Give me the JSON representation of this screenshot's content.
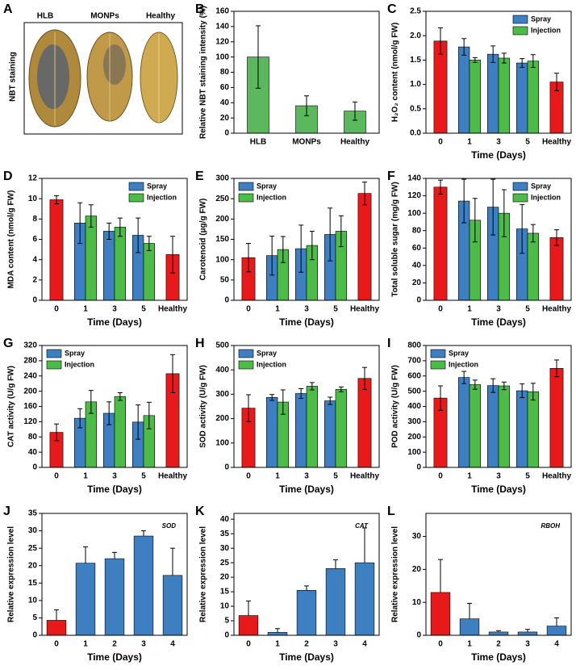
{
  "image_panel": {
    "panel_label": "A",
    "ylabel": "NBT staining",
    "captions": [
      "HLB",
      "MONPs",
      "Healthy"
    ]
  },
  "chart_data": [
    {
      "type": "bar",
      "panel_label": "B",
      "ylabel": "Relative NBT staining intensity (%)",
      "categories": [
        "HLB",
        "MONPs",
        "Healthy"
      ],
      "values": [
        100,
        36,
        29
      ],
      "errors": [
        41,
        13,
        12
      ],
      "color": "#5cb85c",
      "error_direction": "both",
      "ylim": [
        0,
        160
      ],
      "yticks": [
        0,
        20,
        40,
        60,
        80,
        100,
        120,
        140,
        160
      ]
    },
    {
      "type": "grouped-bar",
      "panel_label": "C",
      "ylabel": "H₂O₂ content (nmol/g FW)",
      "xlabel": "Time (Days)",
      "categories": [
        "0",
        "1",
        "3",
        "5",
        "Healthy"
      ],
      "control": {
        "color": "#e8191b",
        "values": [
          1.89,
          null,
          null,
          null,
          1.05
        ],
        "errors": [
          0.27,
          null,
          null,
          null,
          0.18
        ]
      },
      "series": [
        {
          "name": "Spray",
          "color": "#3d7fc1",
          "values": [
            null,
            1.77,
            1.62,
            1.44,
            null
          ],
          "errors": [
            null,
            0.17,
            0.17,
            0.09,
            null
          ]
        },
        {
          "name": "Injection",
          "color": "#4cbb47",
          "values": [
            null,
            1.5,
            1.54,
            1.48,
            null
          ],
          "errors": [
            null,
            0.05,
            0.1,
            0.13,
            null
          ]
        }
      ],
      "legend": "upper right",
      "error_direction": "both",
      "ylim": [
        0,
        2.5
      ],
      "yticks": [
        {
          "value": 0,
          "label": "0.0"
        },
        {
          "value": 0.5,
          "label": "0.5"
        },
        {
          "value": 1,
          "label": "1.0"
        },
        {
          "value": 1.5,
          "label": "1.5"
        },
        {
          "value": 2,
          "label": "2.0"
        },
        {
          "value": 2.5,
          "label": "2.5"
        }
      ]
    },
    {
      "type": "grouped-bar",
      "panel_label": "D",
      "ylabel": "MDA content (nmol/g FW)",
      "xlabel": "Time (Days)",
      "categories": [
        "0",
        "1",
        "3",
        "5",
        "Healthy"
      ],
      "control": {
        "color": "#e8191b",
        "values": [
          9.9,
          null,
          null,
          null,
          4.5
        ],
        "errors": [
          0.4,
          null,
          null,
          null,
          1.8
        ]
      },
      "series": [
        {
          "name": "Spray",
          "color": "#3d7fc1",
          "values": [
            null,
            7.6,
            6.8,
            6.4,
            null
          ],
          "errors": [
            null,
            2,
            0.8,
            1.7,
            null
          ]
        },
        {
          "name": "Injection",
          "color": "#4cbb47",
          "values": [
            null,
            8.3,
            7.2,
            5.6,
            null
          ],
          "errors": [
            null,
            1.1,
            0.9,
            0.7,
            null
          ]
        }
      ],
      "legend": "upper right",
      "error_direction": "both",
      "ylim": [
        0,
        12
      ],
      "yticks": [
        0,
        2,
        4,
        6,
        8,
        10,
        12
      ]
    },
    {
      "type": "grouped-bar",
      "panel_label": "E",
      "ylabel": "Carotenoid (μg/g FW)",
      "xlabel": "Time (Days)",
      "categories": [
        "0",
        "1",
        "3",
        "5",
        "Healthy"
      ],
      "control": {
        "color": "#e8191b",
        "values": [
          105,
          null,
          null,
          null,
          263
        ],
        "errors": [
          35,
          null,
          null,
          null,
          28
        ]
      },
      "series": [
        {
          "name": "Spray",
          "color": "#3d7fc1",
          "values": [
            null,
            110,
            127,
            162,
            null
          ],
          "errors": [
            null,
            48,
            58,
            65,
            null
          ]
        },
        {
          "name": "Injection",
          "color": "#4cbb47",
          "values": [
            null,
            125,
            135,
            170,
            null
          ],
          "errors": [
            null,
            32,
            35,
            38,
            null
          ]
        }
      ],
      "legend": "upper left",
      "error_direction": "both",
      "ylim": [
        0,
        300
      ],
      "yticks": [
        0,
        50,
        100,
        150,
        200,
        250,
        300
      ]
    },
    {
      "type": "grouped-bar",
      "panel_label": "F",
      "ylabel": "Total soluble sugar (mg/g FW)",
      "xlabel": "Time (Days)",
      "categories": [
        "0",
        "1",
        "3",
        "5",
        "Healthy"
      ],
      "control": {
        "color": "#e8191b",
        "values": [
          130,
          null,
          null,
          null,
          72
        ],
        "errors": [
          8,
          null,
          null,
          null,
          9
        ]
      },
      "series": [
        {
          "name": "Spray",
          "color": "#3d7fc1",
          "values": [
            null,
            114,
            107,
            82,
            null
          ],
          "errors": [
            null,
            25,
            32,
            28,
            null
          ]
        },
        {
          "name": "Injection",
          "color": "#4cbb47",
          "values": [
            null,
            92,
            100,
            77,
            null
          ],
          "errors": [
            null,
            25,
            27,
            10,
            null
          ]
        }
      ],
      "legend": "upper right",
      "error_direction": "both",
      "ylim": [
        0,
        140
      ],
      "yticks": [
        0,
        20,
        40,
        60,
        80,
        100,
        120,
        140
      ]
    },
    {
      "type": "grouped-bar",
      "panel_label": "G",
      "ylabel": "CAT activity (U/g FW)",
      "xlabel": "Time (Days)",
      "categories": [
        "0",
        "1",
        "3",
        "5",
        "Healthy"
      ],
      "control": {
        "color": "#e8191b",
        "values": [
          92,
          null,
          null,
          null,
          246
        ],
        "errors": [
          22,
          null,
          null,
          null,
          50
        ]
      },
      "series": [
        {
          "name": "Spray",
          "color": "#3d7fc1",
          "values": [
            null,
            129,
            142,
            119,
            null
          ],
          "errors": [
            null,
            25,
            30,
            45,
            null
          ]
        },
        {
          "name": "Injection",
          "color": "#4cbb47",
          "values": [
            null,
            172,
            186,
            136,
            null
          ],
          "errors": [
            null,
            30,
            10,
            35,
            null
          ]
        }
      ],
      "legend": "upper left",
      "error_direction": "both",
      "ylim": [
        0,
        320
      ],
      "yticks": [
        0,
        40,
        80,
        120,
        160,
        200,
        240,
        280,
        320
      ]
    },
    {
      "type": "grouped-bar",
      "panel_label": "H",
      "ylabel": "SOD activity (U/g FW)",
      "xlabel": "Time (Days)",
      "categories": [
        "0",
        "1",
        "3",
        "5",
        "Healthy"
      ],
      "control": {
        "color": "#e8191b",
        "values": [
          243,
          null,
          null,
          null,
          365
        ],
        "errors": [
          55,
          null,
          null,
          null,
          45
        ]
      },
      "series": [
        {
          "name": "Spray",
          "color": "#3d7fc1",
          "values": [
            null,
            287,
            303,
            273,
            null
          ],
          "errors": [
            null,
            12,
            20,
            15,
            null
          ]
        },
        {
          "name": "Injection",
          "color": "#4cbb47",
          "values": [
            null,
            268,
            333,
            320,
            null
          ],
          "errors": [
            null,
            50,
            15,
            10,
            null
          ]
        }
      ],
      "legend": "upper left",
      "error_direction": "both",
      "ylim": [
        0,
        500
      ],
      "yticks": [
        0,
        100,
        200,
        300,
        400,
        500
      ]
    },
    {
      "type": "grouped-bar",
      "panel_label": "I",
      "ylabel": "POD activity (U/g FW)",
      "xlabel": "Time (Days)",
      "categories": [
        "0",
        "1",
        "3",
        "5",
        "Healthy"
      ],
      "control": {
        "color": "#e8191b",
        "values": [
          455,
          null,
          null,
          null,
          650
        ],
        "errors": [
          80,
          null,
          null,
          null,
          55
        ]
      },
      "series": [
        {
          "name": "Spray",
          "color": "#3d7fc1",
          "values": [
            null,
            590,
            537,
            503,
            null
          ],
          "errors": [
            null,
            40,
            45,
            45,
            null
          ]
        },
        {
          "name": "Injection",
          "color": "#4cbb47",
          "values": [
            null,
            543,
            535,
            497,
            null
          ],
          "errors": [
            null,
            30,
            25,
            55,
            null
          ]
        }
      ],
      "legend": "upper left",
      "error_direction": "both",
      "ylim": [
        0,
        800
      ],
      "yticks": [
        0,
        100,
        200,
        300,
        400,
        500,
        600,
        700,
        800
      ]
    },
    {
      "type": "bar",
      "panel_label": "J",
      "ylabel": "Relative expression level",
      "xlabel": "Time (Days)",
      "annotation": "SOD",
      "categories": [
        "0",
        "1",
        "2",
        "3",
        "4"
      ],
      "values": [
        4.3,
        20.7,
        22,
        28.5,
        17.2
      ],
      "errors": [
        3,
        4.7,
        1.8,
        1.5,
        7.8
      ],
      "colors": [
        "#e8191b",
        "#3d7fc1",
        "#3d7fc1",
        "#3d7fc1",
        "#3d7fc1"
      ],
      "error_direction": "up",
      "ylim": [
        0,
        35
      ],
      "yticks": [
        0,
        5,
        10,
        15,
        20,
        25,
        30,
        35
      ]
    },
    {
      "type": "bar",
      "panel_label": "K",
      "ylabel": "Relative expression level",
      "xlabel": "Time (Days)",
      "annotation": "CAT",
      "categories": [
        "0",
        "1",
        "2",
        "3",
        "4"
      ],
      "values": [
        6.8,
        1,
        15.5,
        23,
        25
      ],
      "errors": [
        5,
        1.3,
        1.5,
        3,
        12
      ],
      "colors": [
        "#e8191b",
        "#3d7fc1",
        "#3d7fc1",
        "#3d7fc1",
        "#3d7fc1"
      ],
      "error_direction": "up",
      "ylim": [
        0,
        42
      ],
      "yticks": [
        0,
        5,
        10,
        15,
        20,
        25,
        30,
        35,
        40
      ]
    },
    {
      "type": "bar",
      "panel_label": "L",
      "ylabel": "Relative expression level",
      "xlabel": "Time (Days)",
      "annotation": "RBOH",
      "categories": [
        "0",
        "1",
        "2",
        "3",
        "4"
      ],
      "values": [
        13,
        5,
        1,
        1,
        2.8
      ],
      "errors": [
        10,
        4.7,
        0.4,
        0.8,
        2.5
      ],
      "colors": [
        "#e8191b",
        "#3d7fc1",
        "#3d7fc1",
        "#3d7fc1",
        "#3d7fc1"
      ],
      "error_direction": "up",
      "ylim": [
        0,
        37
      ],
      "yticks": [
        0,
        10,
        20,
        30
      ]
    }
  ]
}
